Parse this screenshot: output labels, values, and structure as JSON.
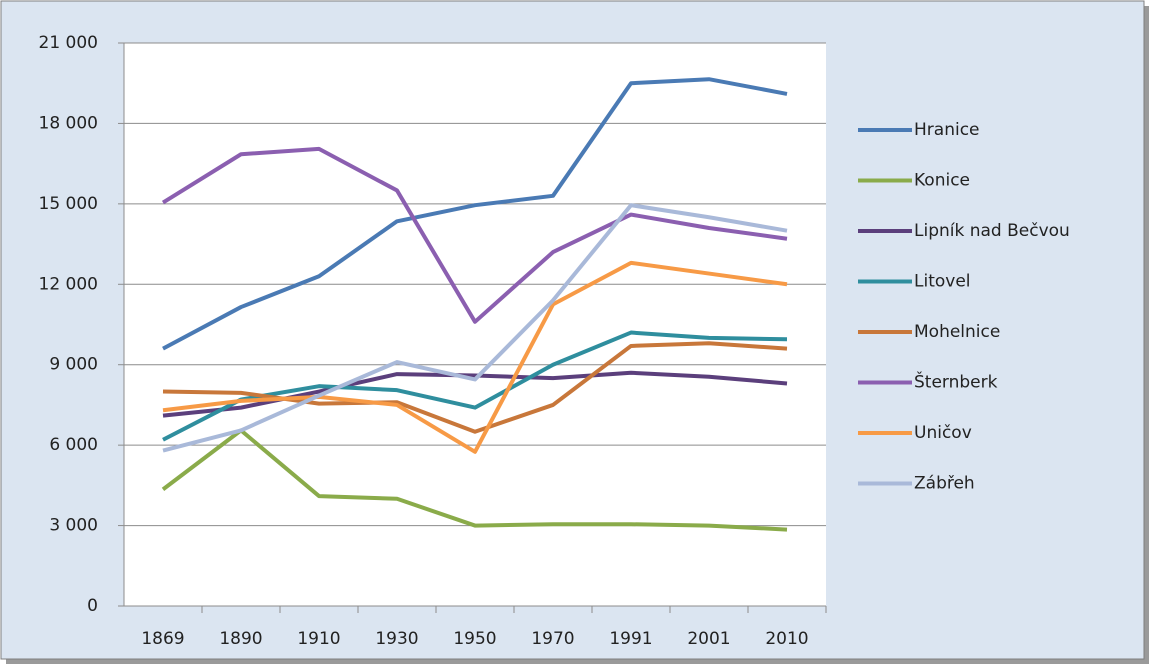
{
  "chart_data": {
    "type": "line",
    "categories": [
      "1869",
      "1890",
      "1910",
      "1930",
      "1950",
      "1970",
      "1991",
      "2001",
      "2010"
    ],
    "series": [
      {
        "name": "Hranice",
        "color": "#4a7ab4",
        "values": [
          9600,
          11150,
          12300,
          14350,
          14950,
          15300,
          19500,
          19650,
          19100
        ]
      },
      {
        "name": "Konice",
        "color": "#8aab4a",
        "values": [
          4350,
          6550,
          4100,
          4000,
          3000,
          3050,
          3050,
          3000,
          2850
        ]
      },
      {
        "name": "Lipník nad Bečvou",
        "color": "#5b3f7c",
        "values": [
          7100,
          7400,
          8000,
          8650,
          8600,
          8500,
          8700,
          8550,
          8300
        ]
      },
      {
        "name": "Litovel",
        "color": "#2f8e9e",
        "values": [
          6200,
          7700,
          8200,
          8050,
          7400,
          9000,
          10200,
          10000,
          9950
        ]
      },
      {
        "name": "Mohelnice",
        "color": "#c8773a",
        "values": [
          8000,
          7950,
          7550,
          7600,
          6500,
          7500,
          9700,
          9800,
          9600
        ]
      },
      {
        "name": "Šternberk",
        "color": "#8b5fb0",
        "values": [
          15050,
          16850,
          17050,
          15500,
          10600,
          13200,
          14600,
          14100,
          13700
        ]
      },
      {
        "name": "Uničov",
        "color": "#f79a46",
        "values": [
          7300,
          7650,
          7800,
          7500,
          5750,
          11250,
          12800,
          12400,
          12000
        ]
      },
      {
        "name": "Zábřeh",
        "color": "#a9b9d9",
        "values": [
          5800,
          6550,
          7850,
          9100,
          8450,
          11400,
          14950,
          14500,
          14000
        ]
      }
    ],
    "ylim": [
      0,
      21000
    ],
    "yticks": [
      0,
      {
        "value": 3000,
        "label": "3 000"
      },
      {
        "value": 6000,
        "label": "6 000"
      },
      {
        "value": 9000,
        "label": "9 000"
      },
      {
        "value": 12000,
        "label": "12 000"
      },
      {
        "value": 15000,
        "label": "15 000"
      },
      {
        "value": 18000,
        "label": "18 000"
      },
      {
        "value": 21000,
        "label": "21 000"
      }
    ],
    "grid": true,
    "legend": "right"
  }
}
